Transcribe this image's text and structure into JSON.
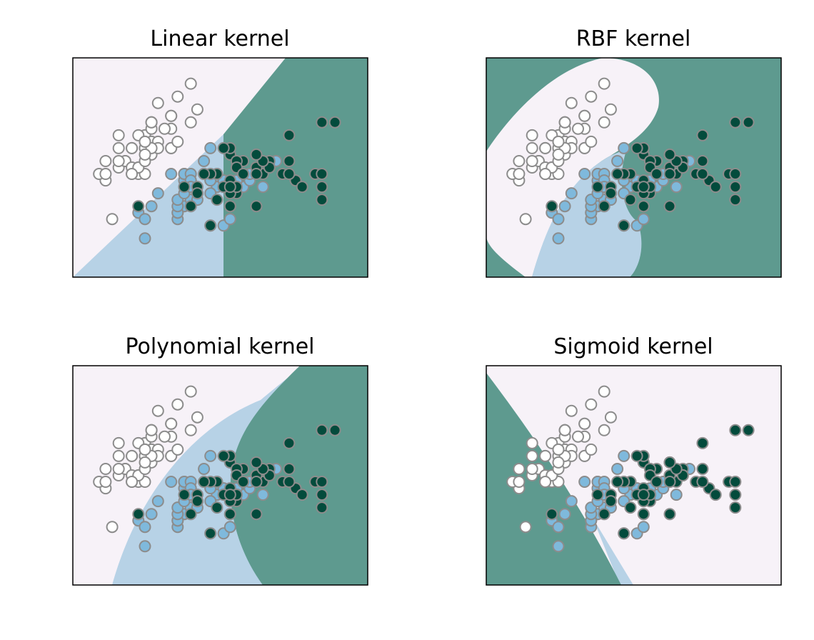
{
  "colors": {
    "class_0_region": "#f7f2f8",
    "class_1_region": "#b7d2e6",
    "class_2_region": "#5e9a8f",
    "class_0_point": "#ffffff",
    "class_1_point": "#7fb9dc",
    "class_2_point": "#034b3c",
    "point_edge": "#8c8c8c",
    "frame": "#000000"
  },
  "chart_data": [
    {
      "type": "scatter",
      "title": "Linear kernel",
      "xlim": [
        3.9,
        8.4
      ],
      "ylim": [
        1.4,
        4.8
      ],
      "grid": false,
      "classifier": "svm-linear"
    },
    {
      "type": "scatter",
      "title": "RBF kernel",
      "xlim": [
        3.9,
        8.4
      ],
      "ylim": [
        1.4,
        4.8
      ],
      "grid": false,
      "classifier": "svm-rbf"
    },
    {
      "type": "scatter",
      "title": "Polynomial kernel",
      "xlim": [
        3.9,
        8.4
      ],
      "ylim": [
        1.4,
        4.8
      ],
      "grid": false,
      "classifier": "svm-polynomial"
    },
    {
      "type": "scatter",
      "title": "Sigmoid kernel",
      "xlim": [
        3.9,
        8.4
      ],
      "ylim": [
        1.4,
        4.8
      ],
      "grid": false,
      "classifier": "svm-sigmoid"
    }
  ],
  "points": {
    "class_0": [
      [
        5.1,
        3.5
      ],
      [
        4.9,
        3.0
      ],
      [
        4.7,
        3.2
      ],
      [
        4.6,
        3.1
      ],
      [
        5.0,
        3.6
      ],
      [
        5.4,
        3.9
      ],
      [
        4.6,
        3.4
      ],
      [
        5.0,
        3.4
      ],
      [
        4.4,
        2.9
      ],
      [
        4.9,
        3.1
      ],
      [
        5.4,
        3.7
      ],
      [
        4.8,
        3.4
      ],
      [
        4.8,
        3.0
      ],
      [
        4.3,
        3.0
      ],
      [
        5.8,
        4.0
      ],
      [
        5.7,
        4.4
      ],
      [
        5.4,
        3.9
      ],
      [
        5.1,
        3.5
      ],
      [
        5.7,
        3.8
      ],
      [
        5.1,
        3.8
      ],
      [
        5.4,
        3.4
      ],
      [
        5.1,
        3.7
      ],
      [
        4.6,
        3.6
      ],
      [
        5.1,
        3.3
      ],
      [
        4.8,
        3.4
      ],
      [
        5.0,
        3.0
      ],
      [
        5.0,
        3.4
      ],
      [
        5.2,
        3.5
      ],
      [
        5.2,
        3.4
      ],
      [
        4.7,
        3.2
      ],
      [
        4.8,
        3.1
      ],
      [
        5.4,
        3.4
      ],
      [
        5.2,
        4.1
      ],
      [
        5.5,
        4.2
      ],
      [
        4.9,
        3.1
      ],
      [
        5.0,
        3.2
      ],
      [
        5.5,
        3.5
      ],
      [
        4.9,
        3.6
      ],
      [
        4.4,
        3.0
      ],
      [
        5.1,
        3.4
      ],
      [
        5.0,
        3.5
      ],
      [
        4.5,
        2.3
      ],
      [
        4.4,
        3.2
      ],
      [
        5.0,
        3.5
      ],
      [
        5.1,
        3.8
      ],
      [
        4.8,
        3.0
      ],
      [
        5.1,
        3.8
      ],
      [
        4.6,
        3.2
      ],
      [
        5.3,
        3.7
      ],
      [
        5.0,
        3.3
      ]
    ],
    "class_1": [
      [
        7.0,
        3.2
      ],
      [
        6.4,
        3.2
      ],
      [
        6.9,
        3.1
      ],
      [
        5.5,
        2.3
      ],
      [
        6.5,
        2.8
      ],
      [
        5.7,
        2.8
      ],
      [
        6.3,
        3.3
      ],
      [
        4.9,
        2.4
      ],
      [
        6.6,
        2.9
      ],
      [
        5.2,
        2.7
      ],
      [
        5.0,
        2.0
      ],
      [
        5.9,
        3.0
      ],
      [
        6.0,
        2.2
      ],
      [
        6.1,
        2.9
      ],
      [
        5.6,
        2.9
      ],
      [
        6.7,
        3.1
      ],
      [
        5.6,
        3.0
      ],
      [
        5.8,
        2.7
      ],
      [
        6.2,
        2.2
      ],
      [
        5.6,
        2.5
      ],
      [
        5.9,
        3.2
      ],
      [
        6.1,
        2.8
      ],
      [
        6.3,
        2.5
      ],
      [
        6.1,
        2.8
      ],
      [
        6.4,
        2.9
      ],
      [
        6.6,
        3.0
      ],
      [
        6.8,
        2.8
      ],
      [
        6.7,
        3.0
      ],
      [
        6.0,
        2.9
      ],
      [
        5.7,
        2.6
      ],
      [
        5.5,
        2.4
      ],
      [
        5.5,
        2.4
      ],
      [
        5.8,
        2.7
      ],
      [
        6.0,
        2.7
      ],
      [
        5.4,
        3.0
      ],
      [
        6.0,
        3.4
      ],
      [
        6.7,
        3.1
      ],
      [
        6.3,
        2.3
      ],
      [
        5.6,
        3.0
      ],
      [
        5.5,
        2.5
      ],
      [
        5.5,
        2.6
      ],
      [
        6.1,
        3.0
      ],
      [
        5.8,
        2.6
      ],
      [
        5.0,
        2.3
      ],
      [
        5.6,
        2.7
      ],
      [
        5.7,
        3.0
      ],
      [
        5.7,
        2.9
      ],
      [
        6.2,
        2.9
      ],
      [
        5.1,
        2.5
      ],
      [
        5.7,
        2.8
      ]
    ],
    "class_2": [
      [
        6.3,
        3.3
      ],
      [
        5.8,
        2.7
      ],
      [
        7.1,
        3.0
      ],
      [
        6.3,
        2.9
      ],
      [
        6.5,
        3.0
      ],
      [
        7.6,
        3.0
      ],
      [
        4.9,
        2.5
      ],
      [
        7.3,
        2.9
      ],
      [
        6.7,
        2.5
      ],
      [
        7.2,
        3.6
      ],
      [
        6.5,
        3.2
      ],
      [
        6.4,
        2.7
      ],
      [
        6.8,
        3.0
      ],
      [
        5.7,
        2.5
      ],
      [
        5.8,
        2.8
      ],
      [
        6.4,
        3.2
      ],
      [
        6.5,
        3.0
      ],
      [
        7.7,
        3.8
      ],
      [
        7.7,
        2.6
      ],
      [
        6.0,
        2.2
      ],
      [
        6.9,
        3.2
      ],
      [
        5.6,
        2.8
      ],
      [
        7.7,
        2.8
      ],
      [
        6.3,
        2.7
      ],
      [
        6.7,
        3.3
      ],
      [
        7.2,
        3.2
      ],
      [
        6.2,
        2.8
      ],
      [
        6.1,
        3.0
      ],
      [
        6.4,
        2.8
      ],
      [
        7.2,
        3.0
      ],
      [
        7.4,
        2.8
      ],
      [
        7.9,
        3.8
      ],
      [
        6.4,
        2.8
      ],
      [
        6.3,
        2.8
      ],
      [
        6.1,
        2.6
      ],
      [
        7.7,
        3.0
      ],
      [
        6.3,
        3.4
      ],
      [
        6.4,
        3.1
      ],
      [
        6.0,
        3.0
      ],
      [
        6.9,
        3.1
      ],
      [
        6.7,
        3.1
      ],
      [
        6.9,
        3.1
      ],
      [
        5.8,
        2.7
      ],
      [
        6.8,
        3.2
      ],
      [
        6.7,
        3.3
      ],
      [
        6.7,
        3.0
      ],
      [
        6.3,
        2.5
      ],
      [
        6.5,
        3.0
      ],
      [
        6.2,
        3.4
      ],
      [
        5.9,
        3.0
      ]
    ]
  }
}
